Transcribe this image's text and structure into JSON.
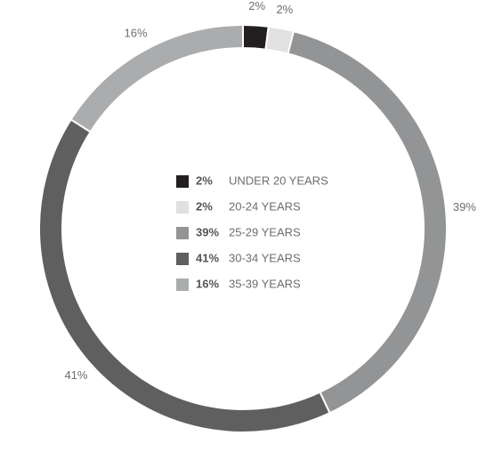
{
  "chart_data": {
    "type": "donut",
    "categories": [
      "UNDER 20 YEARS",
      "20-24 YEARS",
      "25-29 YEARS",
      "30-34 YEARS",
      "35-39 YEARS"
    ],
    "values": [
      2,
      2,
      39,
      41,
      16
    ],
    "value_labels": [
      "2%",
      "2%",
      "39%",
      "41%",
      "16%"
    ],
    "colors": [
      "#231f20",
      "#e1e1e2",
      "#939495",
      "#5f5f60",
      "#abacae"
    ]
  }
}
